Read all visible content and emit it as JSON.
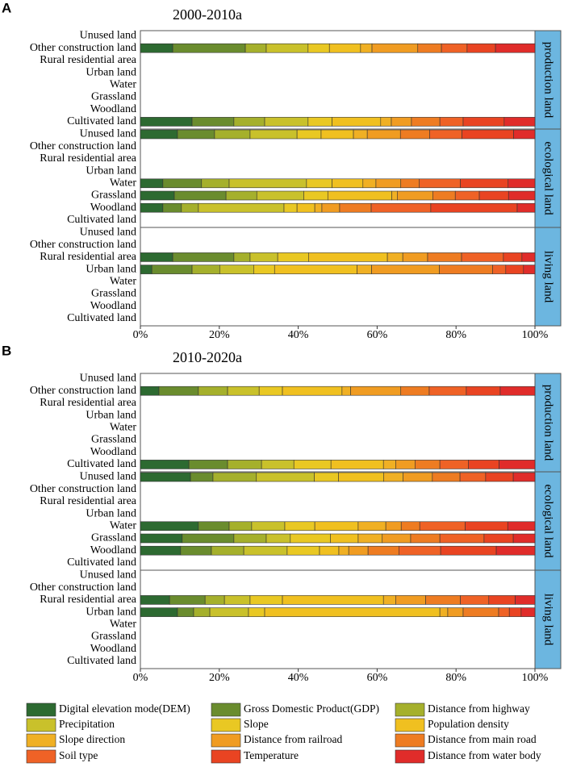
{
  "chart_data": [
    {
      "type": "bar",
      "panel_label": "A",
      "title": "2000-2010a",
      "categories": [
        "Unused land",
        "Other construction land",
        "Rural residential area",
        "Urban land",
        "Water",
        "Grassland",
        "Woodland",
        "Cultivated land",
        "Unused land",
        "Other construction land",
        "Rural residential area",
        "Urban land",
        "Water",
        "Grassland",
        "Woodland",
        "Cultivated land",
        "Unused land",
        "Other construction land",
        "Rural residential area",
        "Urban land",
        "Water",
        "Grassland",
        "Woodland",
        "Cultivated land"
      ],
      "facets": [
        "production land",
        "ecological land",
        "living land"
      ],
      "xlim": [
        0,
        100
      ],
      "xticks": [
        {
          "value": 0,
          "label": "0%"
        },
        {
          "value": 20,
          "label": "20%"
        },
        {
          "value": 40,
          "label": "40%"
        },
        {
          "value": 60,
          "label": "60%"
        },
        {
          "value": 80,
          "label": "80%"
        },
        {
          "value": 100,
          "label": "100%"
        }
      ],
      "series": [
        {
          "name": "Digital elevation mode(DEM)",
          "color": "#2d6a31",
          "values": [
            null,
            8.2,
            null,
            null,
            null,
            null,
            null,
            13.1,
            9.4,
            null,
            null,
            null,
            5.7,
            8.6,
            5.7,
            null,
            null,
            null,
            8.2,
            2.9,
            null,
            null,
            null,
            null
          ]
        },
        {
          "name": "Gross Domestic Product(GDP)",
          "color": "#6a8c2e",
          "values": [
            null,
            18.4,
            null,
            null,
            null,
            null,
            null,
            10.6,
            9.4,
            null,
            null,
            null,
            9.8,
            13.1,
            4.7,
            null,
            null,
            null,
            15.5,
            10.2,
            null,
            null,
            null,
            null
          ]
        },
        {
          "name": "Distance from highway",
          "color": "#a5b02c",
          "values": [
            null,
            5.3,
            null,
            null,
            null,
            null,
            null,
            7.8,
            9.0,
            null,
            null,
            null,
            7.0,
            7.8,
            4.3,
            null,
            null,
            null,
            4.1,
            7.0,
            null,
            null,
            null,
            null
          ]
        },
        {
          "name": "Precipitation",
          "color": "#c9c12b",
          "values": [
            null,
            10.6,
            null,
            null,
            null,
            null,
            null,
            11.0,
            11.9,
            null,
            null,
            null,
            19.6,
            11.9,
            21.7,
            null,
            null,
            null,
            7.0,
            8.6,
            null,
            null,
            null,
            null
          ]
        },
        {
          "name": "Slope",
          "color": "#e9c823",
          "values": [
            null,
            5.4,
            null,
            null,
            null,
            null,
            null,
            6.1,
            6.1,
            null,
            null,
            null,
            6.5,
            6.1,
            3.3,
            null,
            null,
            null,
            7.8,
            5.3,
            null,
            null,
            null,
            null
          ]
        },
        {
          "name": "Population density",
          "color": "#f0c020",
          "values": [
            null,
            7.9,
            null,
            null,
            null,
            null,
            null,
            12.3,
            8.2,
            null,
            null,
            null,
            7.8,
            16.2,
            4.5,
            null,
            null,
            null,
            20.0,
            20.9,
            null,
            null,
            null,
            null
          ]
        },
        {
          "name": "Slope direction",
          "color": "#f0b024",
          "values": [
            null,
            2.9,
            null,
            null,
            null,
            null,
            null,
            2.7,
            3.5,
            null,
            null,
            null,
            3.3,
            1.4,
            1.8,
            null,
            null,
            null,
            3.9,
            3.7,
            null,
            null,
            null,
            null
          ]
        },
        {
          "name": "Distance from  railroad",
          "color": "#f09c22",
          "values": [
            null,
            11.6,
            null,
            null,
            null,
            null,
            null,
            5.1,
            8.4,
            null,
            null,
            null,
            6.3,
            9.0,
            4.5,
            null,
            null,
            null,
            6.3,
            17.2,
            null,
            null,
            null,
            null
          ]
        },
        {
          "name": "Distance from main road",
          "color": "#ee7c22",
          "values": [
            null,
            6.0,
            null,
            null,
            null,
            null,
            null,
            7.2,
            7.4,
            null,
            null,
            null,
            4.7,
            5.7,
            8.0,
            null,
            null,
            null,
            8.6,
            13.5,
            null,
            null,
            null,
            null
          ]
        },
        {
          "name": "Soil type",
          "color": "#ef6226",
          "values": [
            null,
            6.5,
            null,
            null,
            null,
            null,
            null,
            5.9,
            8.2,
            null,
            null,
            null,
            10.4,
            6.1,
            15.1,
            null,
            null,
            null,
            10.6,
            3.3,
            null,
            null,
            null,
            null
          ]
        },
        {
          "name": "Temperature",
          "color": "#e94422",
          "values": [
            null,
            7.2,
            null,
            null,
            null,
            null,
            null,
            10.4,
            13.1,
            null,
            null,
            null,
            12.1,
            7.4,
            21.9,
            null,
            null,
            null,
            4.7,
            4.5,
            null,
            null,
            null,
            null
          ]
        },
        {
          "name": "Distance from water body",
          "color": "#e02c2a",
          "values": [
            null,
            10.0,
            null,
            null,
            null,
            null,
            null,
            7.8,
            5.4,
            null,
            null,
            null,
            6.8,
            6.7,
            4.5,
            null,
            null,
            null,
            3.3,
            2.9,
            null,
            null,
            null,
            null
          ]
        }
      ]
    },
    {
      "type": "bar",
      "panel_label": "B",
      "title": "2010-2020a",
      "categories": [
        "Unused land",
        "Other construction land",
        "Rural residential area",
        "Urban land",
        "Water",
        "Grassland",
        "Woodland",
        "Cultivated land",
        "Unused land",
        "Other construction land",
        "Rural residential area",
        "Urban land",
        "Water",
        "Grassland",
        "Woodland",
        "Cultivated land",
        "Unused land",
        "Other construction land",
        "Rural residential area",
        "Urban land",
        "Water",
        "Grassland",
        "Woodland",
        "Cultivated land"
      ],
      "facets": [
        "production land",
        "ecological land",
        "living land"
      ],
      "xlim": [
        0,
        100
      ],
      "xticks": [
        {
          "value": 0,
          "label": "0%"
        },
        {
          "value": 20,
          "label": "20%"
        },
        {
          "value": 40,
          "label": "40%"
        },
        {
          "value": 60,
          "label": "60%"
        },
        {
          "value": 80,
          "label": "80%"
        },
        {
          "value": 100,
          "label": "100%"
        }
      ],
      "series": [
        {
          "color": "#2d6a31",
          "values": [
            null,
            4.7,
            null,
            null,
            null,
            null,
            null,
            12.3,
            12.7,
            null,
            null,
            null,
            14.7,
            10.6,
            10.2,
            null,
            null,
            null,
            7.4,
            9.4,
            null,
            null,
            null,
            null
          ]
        },
        {
          "color": "#6a8c2e",
          "values": [
            null,
            10.0,
            null,
            null,
            null,
            null,
            null,
            9.8,
            5.7,
            null,
            null,
            null,
            7.8,
            13.1,
            7.8,
            null,
            null,
            null,
            9.0,
            4.1,
            null,
            null,
            null,
            null
          ]
        },
        {
          "color": "#a5b02c",
          "values": [
            null,
            7.4,
            null,
            null,
            null,
            null,
            null,
            8.6,
            11.0,
            null,
            null,
            null,
            5.7,
            8.2,
            8.2,
            null,
            null,
            null,
            4.9,
            4.1,
            null,
            null,
            null,
            null
          ]
        },
        {
          "color": "#c9c12b",
          "values": [
            null,
            8.0,
            null,
            null,
            null,
            null,
            null,
            8.2,
            14.7,
            null,
            null,
            null,
            8.4,
            6.1,
            11.0,
            null,
            null,
            null,
            6.5,
            9.8,
            null,
            null,
            null,
            null
          ]
        },
        {
          "color": "#e9c823",
          "values": [
            null,
            5.9,
            null,
            null,
            null,
            null,
            null,
            9.4,
            6.1,
            null,
            null,
            null,
            7.6,
            10.2,
            8.2,
            null,
            null,
            null,
            8.2,
            4.1,
            null,
            null,
            null,
            null
          ]
        },
        {
          "color": "#f0c020",
          "values": [
            null,
            15.1,
            null,
            null,
            null,
            null,
            null,
            13.3,
            11.5,
            null,
            null,
            null,
            11.0,
            7.0,
            4.9,
            null,
            null,
            null,
            25.6,
            44.4,
            null,
            null,
            null,
            null
          ]
        },
        {
          "color": "#f0b024",
          "values": [
            null,
            2.2,
            null,
            null,
            null,
            null,
            null,
            3.1,
            4.9,
            null,
            null,
            null,
            7.0,
            6.1,
            2.5,
            null,
            null,
            null,
            3.1,
            2.0,
            null,
            null,
            null,
            null
          ]
        },
        {
          "color": "#f09c22",
          "values": [
            null,
            12.7,
            null,
            null,
            null,
            null,
            null,
            4.9,
            7.4,
            null,
            null,
            null,
            3.9,
            7.2,
            4.9,
            null,
            null,
            null,
            7.6,
            3.9,
            null,
            null,
            null,
            null
          ]
        },
        {
          "color": "#ee7c22",
          "values": [
            null,
            7.2,
            null,
            null,
            null,
            null,
            null,
            6.3,
            7.0,
            null,
            null,
            null,
            4.7,
            7.4,
            7.8,
            null,
            null,
            null,
            8.8,
            9.0,
            null,
            null,
            null,
            null
          ]
        },
        {
          "color": "#ef6226",
          "values": [
            null,
            9.4,
            null,
            null,
            null,
            null,
            null,
            7.2,
            6.5,
            null,
            null,
            null,
            11.5,
            11.2,
            10.6,
            null,
            null,
            null,
            7.2,
            2.7,
            null,
            null,
            null,
            null
          ]
        },
        {
          "color": "#e94422",
          "values": [
            null,
            8.6,
            null,
            null,
            null,
            null,
            null,
            7.8,
            7.0,
            null,
            null,
            null,
            10.8,
            7.4,
            14.1,
            null,
            null,
            null,
            6.7,
            3.0,
            null,
            null,
            null,
            null
          ]
        },
        {
          "color": "#e02c2a",
          "values": [
            null,
            8.8,
            null,
            null,
            null,
            null,
            null,
            9.1,
            5.5,
            null,
            null,
            null,
            6.9,
            5.5,
            9.8,
            null,
            null,
            null,
            5.0,
            3.5,
            null,
            null,
            null,
            null
          ]
        }
      ]
    }
  ]
}
